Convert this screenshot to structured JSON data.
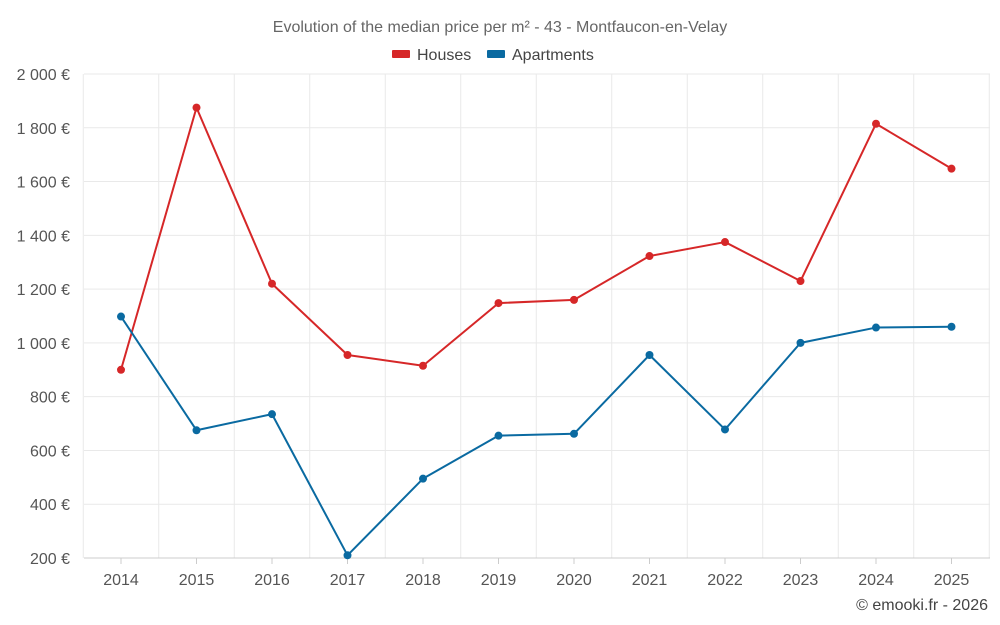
{
  "chart_data": {
    "type": "line",
    "title": "Evolution of the median price per m² - 43 - Montfaucon-en-Velay",
    "categories": [
      "2014",
      "2015",
      "2016",
      "2017",
      "2018",
      "2019",
      "2020",
      "2021",
      "2022",
      "2023",
      "2024",
      "2025"
    ],
    "series": [
      {
        "name": "Houses",
        "color": "#d62728",
        "values": [
          900,
          1875,
          1220,
          955,
          915,
          1148,
          1160,
          1323,
          1375,
          1230,
          1815,
          1648
        ]
      },
      {
        "name": "Apartments",
        "color": "#0a6aa1",
        "values": [
          1098,
          675,
          735,
          210,
          495,
          655,
          662,
          955,
          678,
          1000,
          1057,
          1060
        ]
      }
    ],
    "ylim": [
      200,
      2000
    ],
    "yticks": [
      200,
      400,
      600,
      800,
      1000,
      1200,
      1400,
      1600,
      1800,
      2000
    ],
    "ytick_labels": [
      "200 €",
      "400 €",
      "600 €",
      "800 €",
      "1 000 €",
      "1 200 €",
      "1 400 €",
      "1 600 €",
      "1 800 €",
      "2 000 €"
    ],
    "xlabel": "",
    "ylabel": "",
    "grid": true,
    "legend_position": "top-center"
  },
  "credit": "© emooki.fr - 2026"
}
